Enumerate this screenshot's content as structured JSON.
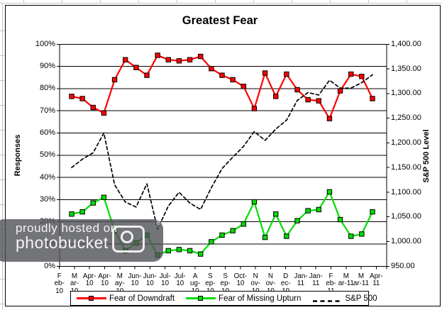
{
  "watermark": {
    "line1": "proudly hosted on",
    "line2": "photobucket",
    "registered": "®"
  },
  "chart_data": {
    "type": "line",
    "title": "Greatest Fear",
    "grid": "horizontal",
    "legend_position": "bottom",
    "x_axis": {
      "tick_labels": [
        "F\neb-\n10",
        "M\nar-\n10",
        "Apr-\n10",
        "Apr-\n10",
        "M\nay-\n10",
        "Jun-\n10",
        "Jun-\n10",
        "Jul-\n10",
        "Jul-\n10",
        "A\nug-\n10",
        "S\nep-\n10",
        "S\nep-\n10",
        "Oct-\n10",
        "N\nov-\n10",
        "N\nov-\n10",
        "D\nec-\n10",
        "Jan-\n11",
        "Jan-\n11",
        "F\neb-\n11",
        "M\nar-11",
        "M\nar-11",
        "Apr-\n11"
      ],
      "labels_full": [
        "Feb-10",
        "Mar-10",
        "Apr-10",
        "Apr-10",
        "May-10",
        "Jun-10",
        "Jun-10",
        "Jul-10",
        "Jul-10",
        "Aug-10",
        "Sep-10",
        "Sep-10",
        "Oct-10",
        "Nov-10",
        "Nov-10",
        "Dec-10",
        "Jan-11",
        "Jan-11",
        "Feb-11",
        "Mar-11",
        "Mar-11",
        "Apr-11"
      ]
    },
    "y_axis_left": {
      "title": "Responses",
      "ticks_top_to_bottom": [
        "100%",
        "90%",
        "80%",
        "70%",
        "60%",
        "50%",
        "40%",
        "30%",
        "20%",
        "10%",
        "0%"
      ],
      "range": [
        0,
        100
      ]
    },
    "y_axis_right": {
      "title": "S&P 500 Level",
      "ticks_top_to_bottom": [
        "1,400.00",
        "1,350.00",
        "1,300.00",
        "1,250.00",
        "1,200.00",
        "1,150.00",
        "1,100.00",
        "1,050.00",
        "1,000.00",
        "950.00"
      ],
      "range": [
        950,
        1400
      ]
    },
    "series": [
      {
        "id": "fear-of-downdraft",
        "name": "Fear of Downdraft",
        "color": "#ff0000",
        "marker": "square",
        "line": "solid",
        "axis": "left",
        "values": [
          76.5,
          75.5,
          71.5,
          69,
          84,
          93,
          89.5,
          86,
          95,
          93,
          92.5,
          93,
          94.5,
          89,
          86,
          84,
          81,
          71,
          87,
          76.5,
          86.5,
          79.5,
          75,
          74.5,
          66.5,
          79,
          86.5,
          85.5,
          75.5
        ]
      },
      {
        "id": "fear-of-missing-upturn",
        "name": "Fear of Missing Upturn",
        "color": "#00dd00",
        "marker": "square",
        "line": "solid",
        "axis": "left",
        "values": [
          23.5,
          24.5,
          28.5,
          31,
          16,
          7,
          10.5,
          14,
          5,
          7,
          7.5,
          7,
          5.5,
          11,
          14,
          16,
          19,
          29,
          13,
          23.5,
          13.5,
          20.5,
          25,
          25.5,
          33.5,
          21,
          13.5,
          14.5,
          24.5
        ]
      },
      {
        "id": "sp500",
        "name": "S&P 500",
        "color": "#000000",
        "marker": "none",
        "line": "dashed",
        "axis": "right",
        "values": [
          1150,
          1167,
          1180,
          1220,
          1115,
          1080,
          1070,
          1117,
          1025,
          1072,
          1100,
          1078,
          1065,
          1109,
          1148,
          1171,
          1193,
          1223,
          1205,
          1228,
          1246,
          1286,
          1302,
          1297,
          1327,
          1311,
          1311,
          1322,
          1338
        ]
      }
    ]
  }
}
